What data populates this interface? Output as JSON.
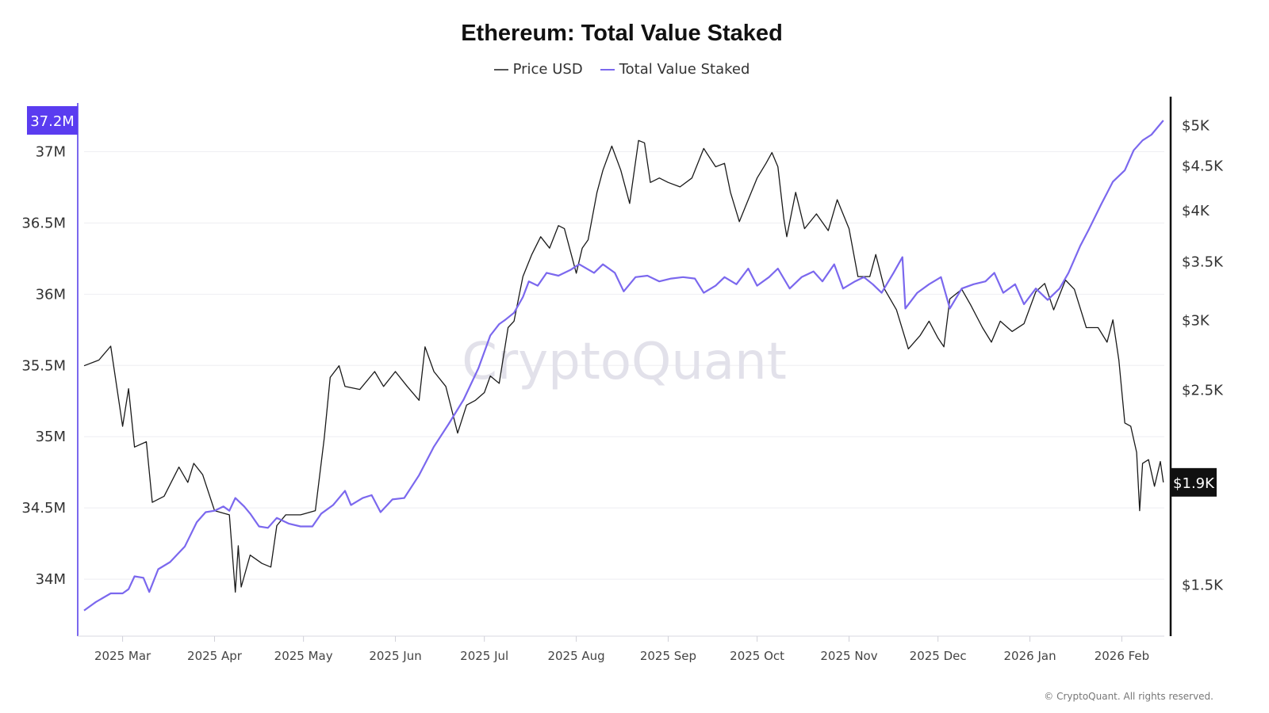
{
  "chart_data": {
    "type": "line",
    "title": "Ethereum: Total Value Staked",
    "watermark": "CryptoQuant",
    "footer": "© CryptoQuant. All rights reserved.",
    "legend_position": "top-center",
    "grid": true,
    "x_ticks": [
      "2025 Mar",
      "2025 Apr",
      "2025 May",
      "2025 Jun",
      "2025 Jul",
      "2025 Aug",
      "2025 Sep",
      "2025 Oct",
      "2025 Nov",
      "2025 Dec",
      "2026 Jan",
      "2026 Feb"
    ],
    "x_tick_dates": [
      "2025-03-01",
      "2025-04-01",
      "2025-05-01",
      "2025-06-01",
      "2025-07-01",
      "2025-08-01",
      "2025-09-01",
      "2025-10-01",
      "2025-11-01",
      "2025-12-01",
      "2026-01-01",
      "2026-02-01"
    ],
    "xlim": [
      "2025-02-16",
      "2026-02-18"
    ],
    "left_axis": {
      "ticks": [
        "34M",
        "34.5M",
        "35M",
        "35.5M",
        "36M",
        "36.5M",
        "37M"
      ],
      "tick_values": [
        34,
        34.5,
        35,
        35.5,
        36,
        36.5,
        37
      ],
      "ylim": [
        33.6,
        37.37
      ],
      "unit": "M",
      "current_label": "37.2M",
      "color": "#7B68EE"
    },
    "right_axis": {
      "scale": "log",
      "ticks": [
        "$1.5K",
        "$2.5K",
        "$3K",
        "$3.5K",
        "$4K",
        "$4.5K",
        "$5K"
      ],
      "tick_values": [
        1500,
        2500,
        3000,
        3500,
        4000,
        4500,
        5000
      ],
      "ylim": [
        1310,
        5350
      ],
      "current_label": "$1.9K",
      "color": "#111111"
    },
    "series": [
      {
        "name": "Price USD",
        "axis": "right",
        "color": "#1a1a1a",
        "points": [
          [
            "2025-02-16",
            2660
          ],
          [
            "2025-02-21",
            2700
          ],
          [
            "2025-02-25",
            2800
          ],
          [
            "2025-03-01",
            2270
          ],
          [
            "2025-03-03",
            2505
          ],
          [
            "2025-03-05",
            2150
          ],
          [
            "2025-03-09",
            2180
          ],
          [
            "2025-03-11",
            1860
          ],
          [
            "2025-03-15",
            1890
          ],
          [
            "2025-03-20",
            2040
          ],
          [
            "2025-03-23",
            1960
          ],
          [
            "2025-03-25",
            2060
          ],
          [
            "2025-03-28",
            2000
          ],
          [
            "2025-04-01",
            1820
          ],
          [
            "2025-04-06",
            1800
          ],
          [
            "2025-04-08",
            1470
          ],
          [
            "2025-04-09",
            1660
          ],
          [
            "2025-04-10",
            1490
          ],
          [
            "2025-04-13",
            1620
          ],
          [
            "2025-04-17",
            1585
          ],
          [
            "2025-04-20",
            1570
          ],
          [
            "2025-04-22",
            1750
          ],
          [
            "2025-04-25",
            1800
          ],
          [
            "2025-04-30",
            1800
          ],
          [
            "2025-05-05",
            1820
          ],
          [
            "2025-05-08",
            2200
          ],
          [
            "2025-05-10",
            2580
          ],
          [
            "2025-05-13",
            2660
          ],
          [
            "2025-05-15",
            2520
          ],
          [
            "2025-05-20",
            2500
          ],
          [
            "2025-05-25",
            2620
          ],
          [
            "2025-05-28",
            2520
          ],
          [
            "2025-06-01",
            2620
          ],
          [
            "2025-06-05",
            2520
          ],
          [
            "2025-06-09",
            2430
          ],
          [
            "2025-06-11",
            2795
          ],
          [
            "2025-06-14",
            2620
          ],
          [
            "2025-06-18",
            2520
          ],
          [
            "2025-06-22",
            2230
          ],
          [
            "2025-06-25",
            2400
          ],
          [
            "2025-06-28",
            2430
          ],
          [
            "2025-07-01",
            2480
          ],
          [
            "2025-07-03",
            2590
          ],
          [
            "2025-07-06",
            2540
          ],
          [
            "2025-07-09",
            2940
          ],
          [
            "2025-07-11",
            2990
          ],
          [
            "2025-07-14",
            3360
          ],
          [
            "2025-07-17",
            3560
          ],
          [
            "2025-07-20",
            3730
          ],
          [
            "2025-07-23",
            3620
          ],
          [
            "2025-07-26",
            3840
          ],
          [
            "2025-07-28",
            3810
          ],
          [
            "2025-08-01",
            3390
          ],
          [
            "2025-08-03",
            3620
          ],
          [
            "2025-08-05",
            3700
          ],
          [
            "2025-08-08",
            4190
          ],
          [
            "2025-08-10",
            4440
          ],
          [
            "2025-08-13",
            4730
          ],
          [
            "2025-08-16",
            4440
          ],
          [
            "2025-08-19",
            4070
          ],
          [
            "2025-08-22",
            4800
          ],
          [
            "2025-08-24",
            4770
          ],
          [
            "2025-08-26",
            4300
          ],
          [
            "2025-08-29",
            4350
          ],
          [
            "2025-09-01",
            4300
          ],
          [
            "2025-09-05",
            4250
          ],
          [
            "2025-09-09",
            4350
          ],
          [
            "2025-09-13",
            4700
          ],
          [
            "2025-09-17",
            4480
          ],
          [
            "2025-09-20",
            4520
          ],
          [
            "2025-09-22",
            4190
          ],
          [
            "2025-09-25",
            3880
          ],
          [
            "2025-09-28",
            4110
          ],
          [
            "2025-10-01",
            4350
          ],
          [
            "2025-10-04",
            4520
          ],
          [
            "2025-10-06",
            4650
          ],
          [
            "2025-10-08",
            4480
          ],
          [
            "2025-10-10",
            3910
          ],
          [
            "2025-10-11",
            3730
          ],
          [
            "2025-10-14",
            4190
          ],
          [
            "2025-10-17",
            3810
          ],
          [
            "2025-10-21",
            3960
          ],
          [
            "2025-10-25",
            3790
          ],
          [
            "2025-10-28",
            4110
          ],
          [
            "2025-11-01",
            3810
          ],
          [
            "2025-11-04",
            3360
          ],
          [
            "2025-11-08",
            3360
          ],
          [
            "2025-11-10",
            3560
          ],
          [
            "2025-11-13",
            3250
          ],
          [
            "2025-11-17",
            3080
          ],
          [
            "2025-11-21",
            2780
          ],
          [
            "2025-11-25",
            2880
          ],
          [
            "2025-11-28",
            2990
          ],
          [
            "2025-12-01",
            2860
          ],
          [
            "2025-12-03",
            2795
          ],
          [
            "2025-12-05",
            3170
          ],
          [
            "2025-12-09",
            3250
          ],
          [
            "2025-12-12",
            3120
          ],
          [
            "2025-12-16",
            2940
          ],
          [
            "2025-12-19",
            2830
          ],
          [
            "2025-12-22",
            2990
          ],
          [
            "2025-12-26",
            2910
          ],
          [
            "2025-12-30",
            2970
          ],
          [
            "2026-01-03",
            3230
          ],
          [
            "2026-01-06",
            3300
          ],
          [
            "2026-01-09",
            3080
          ],
          [
            "2026-01-13",
            3330
          ],
          [
            "2026-01-16",
            3250
          ],
          [
            "2026-01-20",
            2940
          ],
          [
            "2026-01-24",
            2940
          ],
          [
            "2026-01-27",
            2830
          ],
          [
            "2026-01-29",
            3000
          ],
          [
            "2026-01-31",
            2700
          ],
          [
            "2026-02-02",
            2290
          ],
          [
            "2026-02-04",
            2270
          ],
          [
            "2026-02-06",
            2120
          ],
          [
            "2026-02-07",
            1820
          ],
          [
            "2026-02-08",
            2060
          ],
          [
            "2026-02-10",
            2080
          ],
          [
            "2026-02-12",
            1940
          ],
          [
            "2026-02-14",
            2070
          ],
          [
            "2026-02-15",
            1960
          ]
        ]
      },
      {
        "name": "Total Value Staked",
        "axis": "left",
        "color": "#7B68EE",
        "points": [
          [
            "2025-02-16",
            33.78
          ],
          [
            "2025-02-20",
            33.84
          ],
          [
            "2025-02-25",
            33.9
          ],
          [
            "2025-03-01",
            33.9
          ],
          [
            "2025-03-03",
            33.93
          ],
          [
            "2025-03-05",
            34.02
          ],
          [
            "2025-03-08",
            34.01
          ],
          [
            "2025-03-10",
            33.91
          ],
          [
            "2025-03-13",
            34.07
          ],
          [
            "2025-03-17",
            34.12
          ],
          [
            "2025-03-22",
            34.23
          ],
          [
            "2025-03-26",
            34.4
          ],
          [
            "2025-03-29",
            34.47
          ],
          [
            "2025-04-01",
            34.48
          ],
          [
            "2025-04-04",
            34.51
          ],
          [
            "2025-04-06",
            34.48
          ],
          [
            "2025-04-08",
            34.57
          ],
          [
            "2025-04-11",
            34.51
          ],
          [
            "2025-04-13",
            34.46
          ],
          [
            "2025-04-16",
            34.37
          ],
          [
            "2025-04-19",
            34.36
          ],
          [
            "2025-04-22",
            34.43
          ],
          [
            "2025-04-26",
            34.39
          ],
          [
            "2025-04-30",
            34.37
          ],
          [
            "2025-05-04",
            34.37
          ],
          [
            "2025-05-07",
            34.46
          ],
          [
            "2025-05-11",
            34.52
          ],
          [
            "2025-05-15",
            34.62
          ],
          [
            "2025-05-17",
            34.52
          ],
          [
            "2025-05-21",
            34.57
          ],
          [
            "2025-05-24",
            34.59
          ],
          [
            "2025-05-27",
            34.47
          ],
          [
            "2025-05-31",
            34.56
          ],
          [
            "2025-06-04",
            34.57
          ],
          [
            "2025-06-09",
            34.73
          ],
          [
            "2025-06-14",
            34.93
          ],
          [
            "2025-06-19",
            35.09
          ],
          [
            "2025-06-24",
            35.26
          ],
          [
            "2025-06-29",
            35.48
          ],
          [
            "2025-07-03",
            35.71
          ],
          [
            "2025-07-06",
            35.79
          ],
          [
            "2025-07-08",
            35.82
          ],
          [
            "2025-07-11",
            35.87
          ],
          [
            "2025-07-14",
            35.98
          ],
          [
            "2025-07-16",
            36.09
          ],
          [
            "2025-07-19",
            36.06
          ],
          [
            "2025-07-22",
            36.15
          ],
          [
            "2025-07-26",
            36.13
          ],
          [
            "2025-07-30",
            36.17
          ],
          [
            "2025-08-02",
            36.21
          ],
          [
            "2025-08-07",
            36.15
          ],
          [
            "2025-08-10",
            36.21
          ],
          [
            "2025-08-14",
            36.15
          ],
          [
            "2025-08-17",
            36.02
          ],
          [
            "2025-08-21",
            36.12
          ],
          [
            "2025-08-25",
            36.13
          ],
          [
            "2025-08-29",
            36.09
          ],
          [
            "2025-09-02",
            36.11
          ],
          [
            "2025-09-06",
            36.12
          ],
          [
            "2025-09-10",
            36.11
          ],
          [
            "2025-09-13",
            36.01
          ],
          [
            "2025-09-17",
            36.06
          ],
          [
            "2025-09-20",
            36.12
          ],
          [
            "2025-09-24",
            36.07
          ],
          [
            "2025-09-28",
            36.18
          ],
          [
            "2025-10-01",
            36.06
          ],
          [
            "2025-10-05",
            36.12
          ],
          [
            "2025-10-08",
            36.18
          ],
          [
            "2025-10-12",
            36.04
          ],
          [
            "2025-10-16",
            36.12
          ],
          [
            "2025-10-20",
            36.16
          ],
          [
            "2025-10-23",
            36.09
          ],
          [
            "2025-10-27",
            36.21
          ],
          [
            "2025-10-30",
            36.04
          ],
          [
            "2025-11-03",
            36.09
          ],
          [
            "2025-11-06",
            36.12
          ],
          [
            "2025-11-09",
            36.07
          ],
          [
            "2025-11-12",
            36.01
          ],
          [
            "2025-11-16",
            36.15
          ],
          [
            "2025-11-19",
            36.26
          ],
          [
            "2025-11-20",
            35.9
          ],
          [
            "2025-11-24",
            36.01
          ],
          [
            "2025-11-28",
            36.07
          ],
          [
            "2025-12-02",
            36.12
          ],
          [
            "2025-12-05",
            35.9
          ],
          [
            "2025-12-09",
            36.04
          ],
          [
            "2025-12-13",
            36.07
          ],
          [
            "2025-12-17",
            36.09
          ],
          [
            "2025-12-20",
            36.15
          ],
          [
            "2025-12-23",
            36.01
          ],
          [
            "2025-12-27",
            36.07
          ],
          [
            "2025-12-30",
            35.93
          ],
          [
            "2026-01-03",
            36.04
          ],
          [
            "2026-01-07",
            35.96
          ],
          [
            "2026-01-11",
            36.04
          ],
          [
            "2026-01-14",
            36.15
          ],
          [
            "2026-01-18",
            36.34
          ],
          [
            "2026-01-21",
            36.46
          ],
          [
            "2026-01-25",
            36.63
          ],
          [
            "2026-01-29",
            36.79
          ],
          [
            "2026-02-02",
            36.87
          ],
          [
            "2026-02-05",
            37.01
          ],
          [
            "2026-02-08",
            37.08
          ],
          [
            "2026-02-11",
            37.12
          ],
          [
            "2026-02-15",
            37.22
          ]
        ]
      }
    ]
  }
}
